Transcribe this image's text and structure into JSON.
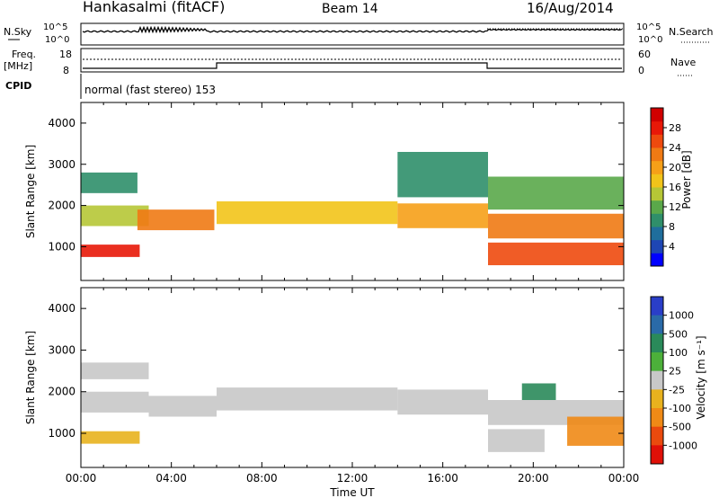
{
  "header": {
    "title": "Hankasalmi (fitACF)",
    "beam": "Beam 14",
    "date": "16/Aug/2014"
  },
  "status": {
    "nsky_label": "N.Sky",
    "nsearch_label": "N.Search",
    "noise_ticks": [
      "10^5",
      "10^0"
    ],
    "freq_label": "Freq.",
    "freq_unit": "[MHz]",
    "freq_ticks": [
      "18",
      "8"
    ],
    "nave_ticks": [
      "60",
      "0"
    ],
    "nave_label": "Nave",
    "cpid_label": "CPID",
    "cpid_text": "normal (fast stereo) 153"
  },
  "axes": {
    "ylabel": "Slant Range [km]",
    "xlabel": "Time UT",
    "yticks": [
      1000,
      2000,
      3000,
      4000
    ],
    "xticks": [
      "00:00",
      "04:00",
      "08:00",
      "12:00",
      "16:00",
      "20:00",
      "00:00"
    ],
    "xlim_hours": [
      0,
      24
    ],
    "ylim_km": [
      180,
      4500
    ]
  },
  "power_scale": {
    "label": "Power [dB]",
    "ticks": [
      "4",
      "8",
      "12",
      "16",
      "20",
      "24",
      "28"
    ],
    "colors": [
      "#0000ff",
      "#1e46b4",
      "#1f6e9c",
      "#2f8f6a",
      "#5aa84a",
      "#b6c636",
      "#f2c41a",
      "#f6a018",
      "#f07a14",
      "#ee4a0e",
      "#e81808",
      "#d00000"
    ]
  },
  "velocity_scale": {
    "label": "Velocity [m s⁻¹]",
    "ticks": [
      "1000",
      "500",
      "100",
      "25",
      "-25",
      "-100",
      "-500",
      "-1000"
    ],
    "colors": [
      "#2a3ec8",
      "#2a6aa8",
      "#2a8a5a",
      "#4cb03a",
      "#c8c8c8",
      "#e8b21e",
      "#f08a16",
      "#ea4a0e",
      "#e01008"
    ]
  },
  "chart_data": [
    {
      "type": "heatmap",
      "name": "power",
      "unit": "dB",
      "x_unit": "hours UT",
      "y_unit": "km",
      "approximate_bands": [
        {
          "x": [
            0.0,
            2.6
          ],
          "y": [
            750,
            1050
          ],
          "value": 28
        },
        {
          "x": [
            0.0,
            3.0
          ],
          "y": [
            1500,
            2000
          ],
          "value": 14
        },
        {
          "x": [
            0.0,
            2.5
          ],
          "y": [
            2300,
            2800
          ],
          "value": 8
        },
        {
          "x": [
            2.5,
            5.9
          ],
          "y": [
            1400,
            1900
          ],
          "value": 22
        },
        {
          "x": [
            6.0,
            14.0
          ],
          "y": [
            1550,
            2100
          ],
          "value": 18
        },
        {
          "x": [
            14.0,
            18.0
          ],
          "y": [
            1450,
            2050
          ],
          "value": 20
        },
        {
          "x": [
            14.0,
            18.0
          ],
          "y": [
            2200,
            3300
          ],
          "value": 8
        },
        {
          "x": [
            18.0,
            24.0
          ],
          "y": [
            550,
            1100
          ],
          "value": 26
        },
        {
          "x": [
            18.0,
            24.0
          ],
          "y": [
            1200,
            1800
          ],
          "value": 24
        },
        {
          "x": [
            18.0,
            24.0
          ],
          "y": [
            1900,
            2700
          ],
          "value": 12
        }
      ]
    },
    {
      "type": "heatmap",
      "name": "velocity",
      "unit": "m/s",
      "x_unit": "hours UT",
      "y_unit": "km",
      "approximate_bands": [
        {
          "x": [
            0.0,
            2.6
          ],
          "y": [
            750,
            1050
          ],
          "value": -100
        },
        {
          "x": [
            0.0,
            3.0
          ],
          "y": [
            1500,
            2000
          ],
          "value": 0
        },
        {
          "x": [
            0.0,
            3.0
          ],
          "y": [
            2300,
            2700
          ],
          "value": 0
        },
        {
          "x": [
            3.0,
            6.0
          ],
          "y": [
            1400,
            1900
          ],
          "value": 0
        },
        {
          "x": [
            6.0,
            14.0
          ],
          "y": [
            1550,
            2100
          ],
          "value": 0
        },
        {
          "x": [
            14.0,
            18.0
          ],
          "y": [
            1450,
            2050
          ],
          "value": 0
        },
        {
          "x": [
            18.0,
            20.5
          ],
          "y": [
            550,
            1100
          ],
          "value": 0
        },
        {
          "x": [
            18.0,
            24.0
          ],
          "y": [
            1200,
            1800
          ],
          "value": 0
        },
        {
          "x": [
            21.5,
            24.0
          ],
          "y": [
            700,
            1400
          ],
          "value": -200
        },
        {
          "x": [
            19.5,
            21.0
          ],
          "y": [
            1800,
            2200
          ],
          "value": 300
        }
      ]
    }
  ]
}
